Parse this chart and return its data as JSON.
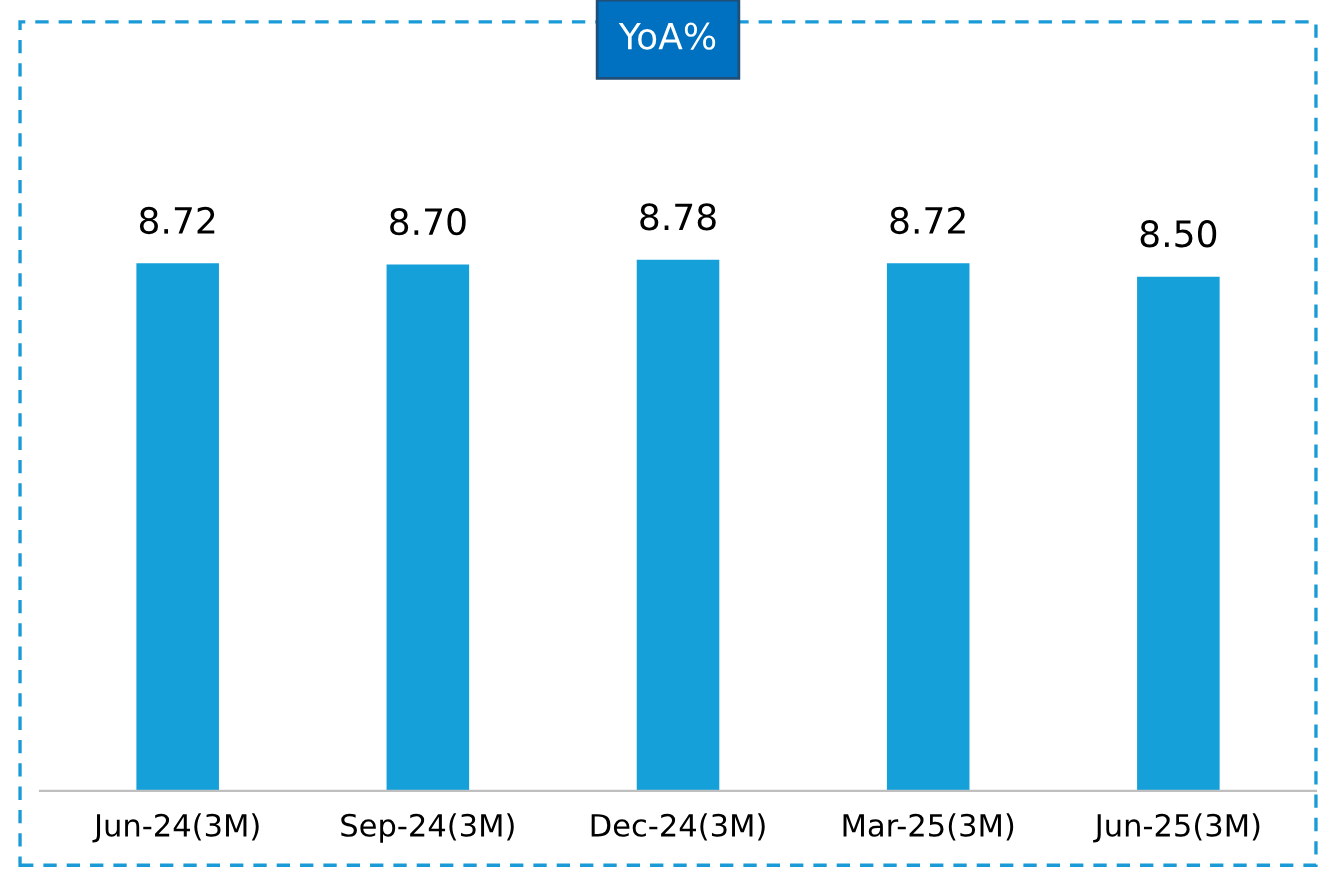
{
  "chart_data": {
    "type": "bar",
    "title": "YoA%",
    "categories": [
      "Jun-24(3M)",
      "Sep-24(3M)",
      "Dec-24(3M)",
      "Mar-25(3M)",
      "Jun-25(3M)"
    ],
    "values": [
      8.72,
      8.7,
      8.78,
      8.72,
      8.5
    ],
    "color": "#15a0d9",
    "data_labels": true,
    "value_labels": [
      "8.72",
      "8.70",
      "8.78",
      "8.72",
      "8.50"
    ],
    "grid": false,
    "legend": false
  }
}
